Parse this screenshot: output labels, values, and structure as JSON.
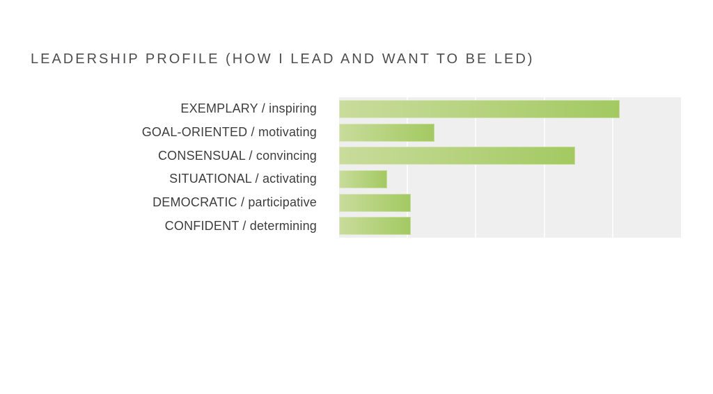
{
  "title": "LEADERSHIP PROFILE (HOW I LEAD AND WANT TO BE LED)",
  "chart_data": {
    "type": "bar",
    "orientation": "horizontal",
    "title": "LEADERSHIP PROFILE (HOW I LEAD AND WANT TO BE LED)",
    "categories": [
      "EXEMPLARY / inspiring",
      "GOAL-ORIENTED / motivating",
      "CONSENSUAL / convincing",
      "SITUATIONAL / activating",
      "DEMOCRATIC / participative",
      "CONFIDENT / determining"
    ],
    "values": [
      82,
      28,
      69,
      14,
      21,
      21
    ],
    "xlim": [
      0,
      100
    ],
    "gridlines_pct": [
      20,
      40,
      60,
      80
    ],
    "grid": true,
    "legend": false,
    "value_labels_shown": false,
    "axis_tick_labels_shown": false,
    "colors": {
      "bar_gradient_start": "#c9dc9c",
      "bar_gradient_end": "#a3c961",
      "plot_background": "#efefef",
      "gridline": "#fbfbfb",
      "title_color": "#4e4e50",
      "label_color": "#3d3d3d"
    }
  }
}
